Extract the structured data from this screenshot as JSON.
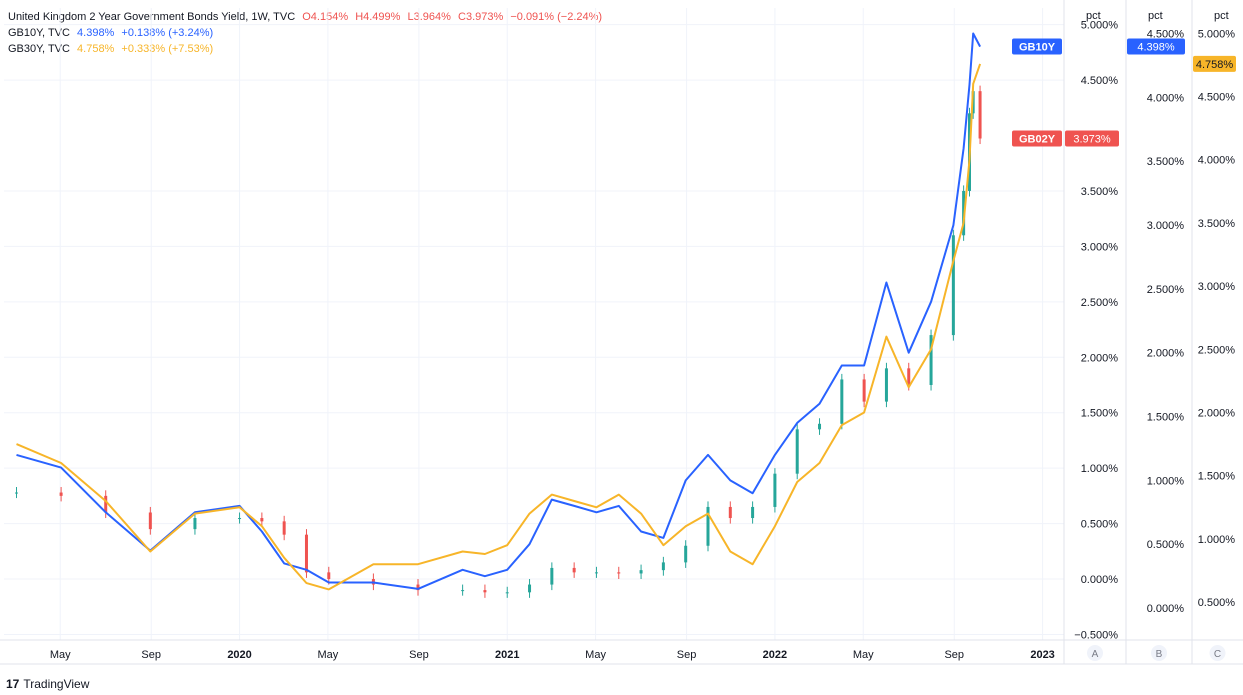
{
  "legend": {
    "main": {
      "name": "United Kingdom 2 Year Government Bonds Yield, 1W, TVC",
      "o": "O4.154%",
      "h": "H4.499%",
      "l": "L3.964%",
      "c": "C3.973%",
      "chg": "−0.091% (−2.24%)",
      "color": "#ef5350"
    },
    "gb10": {
      "name": "GB10Y, TVC",
      "val": "4.398%",
      "chg": "+0.138% (+3.24%)",
      "color": "#2962ff"
    },
    "gb30": {
      "name": "GB30Y, TVC",
      "val": "4.758%",
      "chg": "+0.333% (+7.53%)",
      "color": "#f7b529"
    }
  },
  "branding": {
    "logo": "17",
    "name": "TradingView"
  },
  "chart_data": {
    "type": "line",
    "title": "United Kingdom 2 Year Government Bonds Yield, 1W, TVC",
    "x": [
      "2019-03",
      "2019-05",
      "2019-07",
      "2019-09",
      "2019-11",
      "2020-01",
      "2020-02",
      "2020-03",
      "2020-04",
      "2020-05",
      "2020-07",
      "2020-09",
      "2020-11",
      "2020-12",
      "2021-01",
      "2021-02",
      "2021-03",
      "2021-04",
      "2021-05",
      "2021-06",
      "2021-07",
      "2021-08",
      "2021-09",
      "2021-10",
      "2021-11",
      "2021-12",
      "2022-01",
      "2022-02",
      "2022-03",
      "2022-04",
      "2022-05",
      "2022-06",
      "2022-07",
      "2022-08",
      "2022-09-01",
      "2022-09-15",
      "2022-09-23",
      "2022-09-28",
      "2022-10-07"
    ],
    "x_tick_labels": [
      "May",
      "Sep",
      "2020",
      "May",
      "Sep",
      "2021",
      "May",
      "Sep",
      "2022",
      "May",
      "Sep",
      "2023"
    ],
    "series": [
      {
        "name": "GB02Y",
        "axis": "A",
        "color": "#26a69a",
        "down_color": "#ef5350",
        "style": "candles",
        "values": [
          0.78,
          0.75,
          0.6,
          0.45,
          0.55,
          0.55,
          0.52,
          0.4,
          0.06,
          0.0,
          -0.05,
          -0.1,
          -0.1,
          -0.12,
          -0.12,
          -0.05,
          0.1,
          0.06,
          0.06,
          0.05,
          0.08,
          0.15,
          0.3,
          0.65,
          0.55,
          0.65,
          0.95,
          1.35,
          1.4,
          1.8,
          1.6,
          1.9,
          1.75,
          2.2,
          3.1,
          3.5,
          4.2,
          4.4,
          3.973
        ]
      },
      {
        "name": "GB10Y",
        "axis": "B",
        "color": "#2962ff",
        "values": [
          1.2,
          1.1,
          0.75,
          0.45,
          0.75,
          0.8,
          0.6,
          0.35,
          0.3,
          0.2,
          0.2,
          0.15,
          0.3,
          0.25,
          0.3,
          0.5,
          0.85,
          0.8,
          0.75,
          0.8,
          0.6,
          0.55,
          1.0,
          1.2,
          1.0,
          0.9,
          1.2,
          1.45,
          1.6,
          1.9,
          1.9,
          2.55,
          2.0,
          2.4,
          3.0,
          3.6,
          4.1,
          4.5,
          4.398
        ]
      },
      {
        "name": "GB30Y",
        "axis": "C",
        "color": "#f7b529",
        "values": [
          1.75,
          1.6,
          1.3,
          0.9,
          1.2,
          1.25,
          1.1,
          0.85,
          0.65,
          0.6,
          0.8,
          0.8,
          0.9,
          0.88,
          0.95,
          1.2,
          1.35,
          1.3,
          1.25,
          1.35,
          1.2,
          0.95,
          1.1,
          1.2,
          0.9,
          0.8,
          1.1,
          1.45,
          1.6,
          1.9,
          2.0,
          2.6,
          2.2,
          2.5,
          3.2,
          3.5,
          4.0,
          4.6,
          4.758
        ]
      }
    ],
    "axes": [
      {
        "id": "A",
        "unit": "pct",
        "ylim": [
          -0.55,
          5.15
        ],
        "ticks": [
          "5.000%",
          "4.500%",
          "3.500%",
          "3.000%",
          "2.500%",
          "2.000%",
          "1.500%",
          "1.000%",
          "0.500%",
          "0.000%",
          "−0.500%"
        ],
        "tick_values": [
          5.0,
          4.5,
          3.5,
          3.0,
          2.5,
          2.0,
          1.5,
          1.0,
          0.5,
          0.0,
          -0.5
        ]
      },
      {
        "id": "B",
        "unit": "pct",
        "ylim": [
          -0.25,
          4.7
        ],
        "ticks": [
          "4.500%",
          "4.000%",
          "3.500%",
          "3.000%",
          "2.500%",
          "2.000%",
          "1.500%",
          "1.000%",
          "0.500%",
          "0.000%"
        ],
        "tick_values": [
          4.5,
          4.0,
          3.5,
          3.0,
          2.5,
          2.0,
          1.5,
          1.0,
          0.5,
          0.0
        ]
      },
      {
        "id": "C",
        "unit": "pct",
        "ylim": [
          0.2,
          5.2
        ],
        "ticks": [
          "5.000%",
          "4.500%",
          "4.000%",
          "3.500%",
          "3.000%",
          "2.500%",
          "2.000%",
          "1.500%",
          "1.000%",
          "0.500%"
        ],
        "tick_values": [
          5.0,
          4.5,
          4.0,
          3.5,
          3.0,
          2.5,
          2.0,
          1.5,
          1.0,
          0.5
        ]
      }
    ],
    "last_value_labels": [
      {
        "series": "GB10Y",
        "axis": "B",
        "label": "4.398%",
        "tag": "GB10Y",
        "color": "#2962ff"
      },
      {
        "series": "GB30Y",
        "axis": "C",
        "label": "4.758%",
        "color": "#f7b529"
      },
      {
        "series": "GB02Y",
        "axis": "A",
        "label": "3.973%",
        "tag": "GB02Y",
        "color": "#ef5350"
      }
    ],
    "axis_letters": [
      "A",
      "B",
      "C"
    ],
    "grid": true
  }
}
